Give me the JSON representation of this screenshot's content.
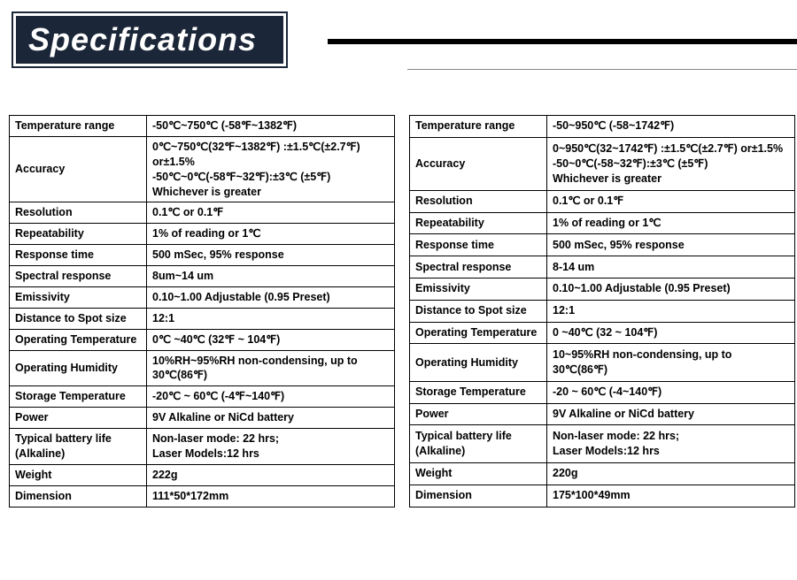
{
  "title": "Specifications",
  "left": {
    "rows": [
      {
        "label": "Temperature range",
        "value": "-50℃~750℃ (-58℉~1382℉)"
      },
      {
        "label": "Accuracy",
        "value": "0℃~750℃(32℉~1382℉) :±1.5℃(±2.7℉) or±1.5%\n-50℃~0℃(-58℉~32℉):±3℃ (±5℉)\nWhichever is greater"
      },
      {
        "label": "Resolution",
        "value": "0.1℃ or 0.1℉"
      },
      {
        "label": "Repeatability",
        "value": "1% of reading or 1℃"
      },
      {
        "label": "Response time",
        "value": "500 mSec, 95% response"
      },
      {
        "label": "Spectral response",
        "value": "8um~14 um"
      },
      {
        "label": "Emissivity",
        "value": "0.10~1.00 Adjustable (0.95 Preset)"
      },
      {
        "label": "Distance to Spot size",
        "value": "12:1"
      },
      {
        "label": "Operating Temperature",
        "value": "0℃ ~40℃ (32℉ ~ 104℉)"
      },
      {
        "label": "Operating Humidity",
        "value": "10%RH~95%RH non-condensing, up to 30℃(86℉)"
      },
      {
        "label": "Storage Temperature",
        "value": "-20℃ ~ 60℃ (-4℉~140℉)"
      },
      {
        "label": "Power",
        "value": "9V Alkaline or NiCd battery"
      },
      {
        "label": "Typical battery life (Alkaline)",
        "value": "Non-laser mode: 22 hrs;\nLaser Models:12 hrs"
      },
      {
        "label": "Weight",
        "value": "222g"
      },
      {
        "label": "Dimension",
        "value": "111*50*172mm"
      }
    ]
  },
  "right": {
    "rows": [
      {
        "label": "Temperature range",
        "value": "-50~950℃ (-58~1742℉)"
      },
      {
        "label": "Accuracy",
        "value": "0~950℃(32~1742℉) :±1.5℃(±2.7℉) or±1.5%\n-50~0℃(-58~32℉):±3℃ (±5℉)\nWhichever is greater"
      },
      {
        "label": "Resolution",
        "value": "0.1℃ or 0.1℉"
      },
      {
        "label": "Repeatability",
        "value": "1% of reading or 1℃"
      },
      {
        "label": "Response time",
        "value": "500 mSec, 95% response"
      },
      {
        "label": "Spectral response",
        "value": "8-14 um"
      },
      {
        "label": "Emissivity",
        "value": "0.10~1.00 Adjustable (0.95 Preset)"
      },
      {
        "label": "Distance to Spot size",
        "value": "12:1"
      },
      {
        "label": "Operating Temperature",
        "value": "0 ~40℃ (32 ~ 104℉)"
      },
      {
        "label": "Operating Humidity",
        "value": "10~95%RH non-condensing, up to 30℃(86℉)"
      },
      {
        "label": "Storage Temperature",
        "value": "-20 ~ 60℃ (-4~140℉)"
      },
      {
        "label": "Power",
        "value": "9V Alkaline or NiCd battery"
      },
      {
        "label": "Typical battery life (Alkaline)",
        "value": "Non-laser mode: 22 hrs;\nLaser Models:12 hrs"
      },
      {
        "label": "Weight",
        "value": "220g"
      },
      {
        "label": "Dimension",
        "value": "175*100*49mm"
      }
    ]
  }
}
